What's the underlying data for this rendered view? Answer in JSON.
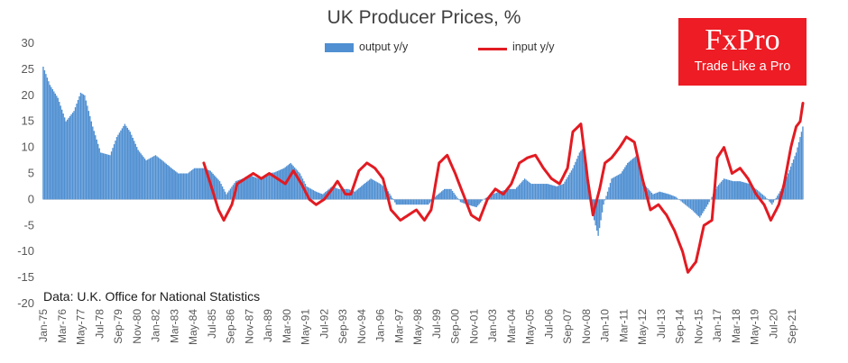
{
  "chart_data": {
    "type": "bar+line",
    "title": "UK Producer Prices, %",
    "source": "Data: U.K. Office for National Statistics",
    "ylim": [
      -20,
      30
    ],
    "yticks": [
      30,
      25,
      20,
      15,
      10,
      5,
      0,
      -5,
      -10,
      -15,
      -20
    ],
    "xlim": [
      "1975-01",
      "2022-05"
    ],
    "xticks": [
      "Jan-75",
      "Mar-76",
      "May-77",
      "Jul-78",
      "Sep-79",
      "Nov-80",
      "Jan-82",
      "Mar-83",
      "May-84",
      "Jul-85",
      "Sep-86",
      "Nov-87",
      "Jan-89",
      "Mar-90",
      "May-91",
      "Jul-92",
      "Sep-93",
      "Nov-94",
      "Jan-96",
      "Mar-97",
      "May-98",
      "Jul-99",
      "Sep-00",
      "Nov-01",
      "Jan-03",
      "Mar-04",
      "May-05",
      "Jul-06",
      "Sep-07",
      "Nov-08",
      "Jan-10",
      "Mar-11",
      "May-12",
      "Jul-13",
      "Sep-14",
      "Nov-15",
      "Jan-17",
      "Mar-18",
      "May-19",
      "Jul-20",
      "Sep-21"
    ],
    "legend_position": "top-center",
    "grid": false,
    "series": [
      {
        "name": "output y/y",
        "kind": "bar",
        "color": "#4f8fd2",
        "points": [
          [
            "1975-01",
            25.5
          ],
          [
            "1975-06",
            22
          ],
          [
            "1975-12",
            19.5
          ],
          [
            "1976-06",
            15
          ],
          [
            "1976-12",
            17
          ],
          [
            "1977-05",
            20.5
          ],
          [
            "1977-08",
            20
          ],
          [
            "1978-02",
            14
          ],
          [
            "1978-08",
            9
          ],
          [
            "1979-03",
            8.5
          ],
          [
            "1979-08",
            12
          ],
          [
            "1980-02",
            14.5
          ],
          [
            "1980-06",
            13
          ],
          [
            "1980-12",
            9.5
          ],
          [
            "1981-06",
            7.5
          ],
          [
            "1982-01",
            8.5
          ],
          [
            "1982-06",
            7.5
          ],
          [
            "1983-01",
            6
          ],
          [
            "1983-06",
            5
          ],
          [
            "1984-01",
            5
          ],
          [
            "1984-06",
            6
          ],
          [
            "1985-01",
            6
          ],
          [
            "1985-06",
            5.5
          ],
          [
            "1986-01",
            3.5
          ],
          [
            "1986-06",
            1
          ],
          [
            "1987-01",
            3.5
          ],
          [
            "1987-06",
            4
          ],
          [
            "1988-01",
            4.5
          ],
          [
            "1988-06",
            4
          ],
          [
            "1989-01",
            5
          ],
          [
            "1989-06",
            5.2
          ],
          [
            "1990-01",
            6
          ],
          [
            "1990-06",
            7
          ],
          [
            "1991-01",
            5
          ],
          [
            "1991-06",
            2.5
          ],
          [
            "1992-01",
            1.5
          ],
          [
            "1992-06",
            1
          ],
          [
            "1993-01",
            2.5
          ],
          [
            "1993-06",
            2
          ],
          [
            "1994-01",
            2
          ],
          [
            "1994-06",
            1.5
          ],
          [
            "1995-01",
            3
          ],
          [
            "1995-06",
            4
          ],
          [
            "1996-01",
            3
          ],
          [
            "1996-06",
            2
          ],
          [
            "1997-01",
            -1
          ],
          [
            "1997-06",
            -1
          ],
          [
            "1998-01",
            -1
          ],
          [
            "1998-06",
            -1
          ],
          [
            "1999-01",
            -1
          ],
          [
            "1999-06",
            0.5
          ],
          [
            "2000-01",
            2
          ],
          [
            "2000-06",
            2
          ],
          [
            "2001-01",
            -0.5
          ],
          [
            "2001-06",
            -1
          ],
          [
            "2002-01",
            -1.5
          ],
          [
            "2002-06",
            0
          ],
          [
            "2003-01",
            1
          ],
          [
            "2003-06",
            1.5
          ],
          [
            "2004-01",
            2
          ],
          [
            "2004-06",
            2
          ],
          [
            "2005-01",
            4
          ],
          [
            "2005-06",
            3
          ],
          [
            "2006-01",
            3
          ],
          [
            "2006-06",
            3
          ],
          [
            "2007-01",
            2.5
          ],
          [
            "2007-06",
            3
          ],
          [
            "2008-01",
            6
          ],
          [
            "2008-06",
            9
          ],
          [
            "2008-09",
            10
          ],
          [
            "2009-01",
            3
          ],
          [
            "2009-04",
            -3
          ],
          [
            "2009-08",
            -7
          ],
          [
            "2009-12",
            -1
          ],
          [
            "2010-06",
            4
          ],
          [
            "2011-01",
            5
          ],
          [
            "2011-06",
            7
          ],
          [
            "2012-01",
            8.5
          ],
          [
            "2012-06",
            3
          ],
          [
            "2013-01",
            1
          ],
          [
            "2013-06",
            1.5
          ],
          [
            "2014-01",
            1
          ],
          [
            "2014-06",
            0.5
          ],
          [
            "2015-01",
            -1
          ],
          [
            "2015-06",
            -2
          ],
          [
            "2015-12",
            -3.5
          ],
          [
            "2016-06",
            -1
          ],
          [
            "2017-01",
            2.5
          ],
          [
            "2017-06",
            4
          ],
          [
            "2018-01",
            3.5
          ],
          [
            "2018-06",
            3.5
          ],
          [
            "2019-01",
            3
          ],
          [
            "2019-06",
            2
          ],
          [
            "2020-01",
            0.5
          ],
          [
            "2020-06",
            -1
          ],
          [
            "2021-01",
            2
          ],
          [
            "2021-06",
            5
          ],
          [
            "2021-12",
            9
          ],
          [
            "2022-05",
            14
          ]
        ]
      },
      {
        "name": "input y/y",
        "kind": "line",
        "color": "#e21b22",
        "points": [
          [
            "1985-01",
            7
          ],
          [
            "1985-06",
            3
          ],
          [
            "1985-12",
            -2
          ],
          [
            "1986-04",
            -4
          ],
          [
            "1986-10",
            -1
          ],
          [
            "1987-02",
            3
          ],
          [
            "1987-08",
            4
          ],
          [
            "1988-02",
            5
          ],
          [
            "1988-08",
            4
          ],
          [
            "1989-02",
            5
          ],
          [
            "1989-08",
            4
          ],
          [
            "1990-02",
            3
          ],
          [
            "1990-08",
            5.5
          ],
          [
            "1991-02",
            3
          ],
          [
            "1991-08",
            0
          ],
          [
            "1992-01",
            -1
          ],
          [
            "1992-07",
            0
          ],
          [
            "1993-01",
            2
          ],
          [
            "1993-05",
            3.5
          ],
          [
            "1993-11",
            1
          ],
          [
            "1994-03",
            1
          ],
          [
            "1994-09",
            5.5
          ],
          [
            "1995-03",
            7
          ],
          [
            "1995-09",
            6
          ],
          [
            "1996-03",
            4
          ],
          [
            "1996-09",
            -2
          ],
          [
            "1997-04",
            -4
          ],
          [
            "1997-10",
            -3
          ],
          [
            "1998-04",
            -2
          ],
          [
            "1998-10",
            -4
          ],
          [
            "1999-03",
            -2
          ],
          [
            "1999-09",
            7
          ],
          [
            "2000-03",
            8.5
          ],
          [
            "2000-09",
            5
          ],
          [
            "2001-03",
            1
          ],
          [
            "2001-09",
            -3
          ],
          [
            "2002-03",
            -4
          ],
          [
            "2002-09",
            0
          ],
          [
            "2003-03",
            2
          ],
          [
            "2003-09",
            1
          ],
          [
            "2004-03",
            3
          ],
          [
            "2004-09",
            7
          ],
          [
            "2005-03",
            8
          ],
          [
            "2005-09",
            8.5
          ],
          [
            "2006-03",
            6
          ],
          [
            "2006-09",
            4
          ],
          [
            "2007-03",
            3
          ],
          [
            "2007-09",
            6
          ],
          [
            "2008-01",
            13
          ],
          [
            "2008-07",
            14.5
          ],
          [
            "2008-12",
            4
          ],
          [
            "2009-04",
            -3
          ],
          [
            "2009-09",
            2
          ],
          [
            "2010-01",
            7
          ],
          [
            "2010-06",
            8
          ],
          [
            "2010-12",
            10
          ],
          [
            "2011-05",
            12
          ],
          [
            "2011-11",
            11
          ],
          [
            "2012-05",
            4
          ],
          [
            "2012-11",
            -2
          ],
          [
            "2013-05",
            -1
          ],
          [
            "2013-11",
            -3
          ],
          [
            "2014-05",
            -6
          ],
          [
            "2014-11",
            -10
          ],
          [
            "2015-03",
            -14
          ],
          [
            "2015-09",
            -12
          ],
          [
            "2016-03",
            -5
          ],
          [
            "2016-09",
            -4
          ],
          [
            "2017-01",
            8
          ],
          [
            "2017-06",
            10
          ],
          [
            "2017-12",
            5
          ],
          [
            "2018-06",
            6
          ],
          [
            "2018-12",
            4
          ],
          [
            "2019-06",
            1
          ],
          [
            "2019-12",
            -1
          ],
          [
            "2020-05",
            -4
          ],
          [
            "2020-11",
            -1
          ],
          [
            "2021-03",
            3
          ],
          [
            "2021-08",
            10
          ],
          [
            "2021-12",
            14
          ],
          [
            "2022-03",
            15
          ],
          [
            "2022-05",
            18.5
          ]
        ]
      }
    ]
  },
  "logo": {
    "name": "FxPro",
    "tagline": "Trade Like a Pro"
  }
}
